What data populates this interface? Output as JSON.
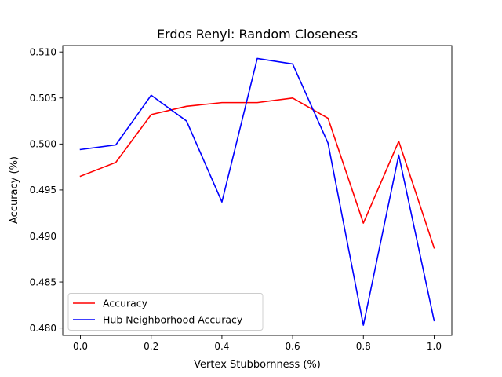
{
  "chart_data": {
    "type": "line",
    "title": "Erdos Renyi: Random Closeness",
    "xlabel": "Vertex Stubbornness (%)",
    "ylabel": "Accuracy (%)",
    "x": [
      0.0,
      0.1,
      0.2,
      0.3,
      0.4,
      0.5,
      0.6,
      0.7,
      0.8,
      0.9,
      1.0
    ],
    "xlim": [
      -0.05,
      1.05
    ],
    "ylim": [
      0.4792,
      0.5107
    ],
    "xticks": [
      0.0,
      0.2,
      0.4,
      0.6,
      0.8,
      1.0
    ],
    "xtick_labels": [
      "0.0",
      "0.2",
      "0.4",
      "0.6",
      "0.8",
      "1.0"
    ],
    "yticks": [
      0.48,
      0.485,
      0.49,
      0.495,
      0.5,
      0.505,
      0.51
    ],
    "ytick_labels": [
      "0.480",
      "0.485",
      "0.490",
      "0.495",
      "0.500",
      "0.505",
      "0.510"
    ],
    "grid": false,
    "legend_position": "lower-left",
    "series": [
      {
        "name": "Accuracy",
        "color": "#ff0000",
        "values": [
          0.4965,
          0.498,
          0.5032,
          0.5041,
          0.5045,
          0.5045,
          0.505,
          0.5028,
          0.4914,
          0.5003,
          0.4887
        ]
      },
      {
        "name": "Hub Neighborhood Accuracy",
        "color": "#0000ff",
        "values": [
          0.4994,
          0.4999,
          0.5053,
          0.5025,
          0.4937,
          0.5093,
          0.5087,
          0.5001,
          0.4803,
          0.4988,
          0.4808
        ]
      }
    ]
  }
}
